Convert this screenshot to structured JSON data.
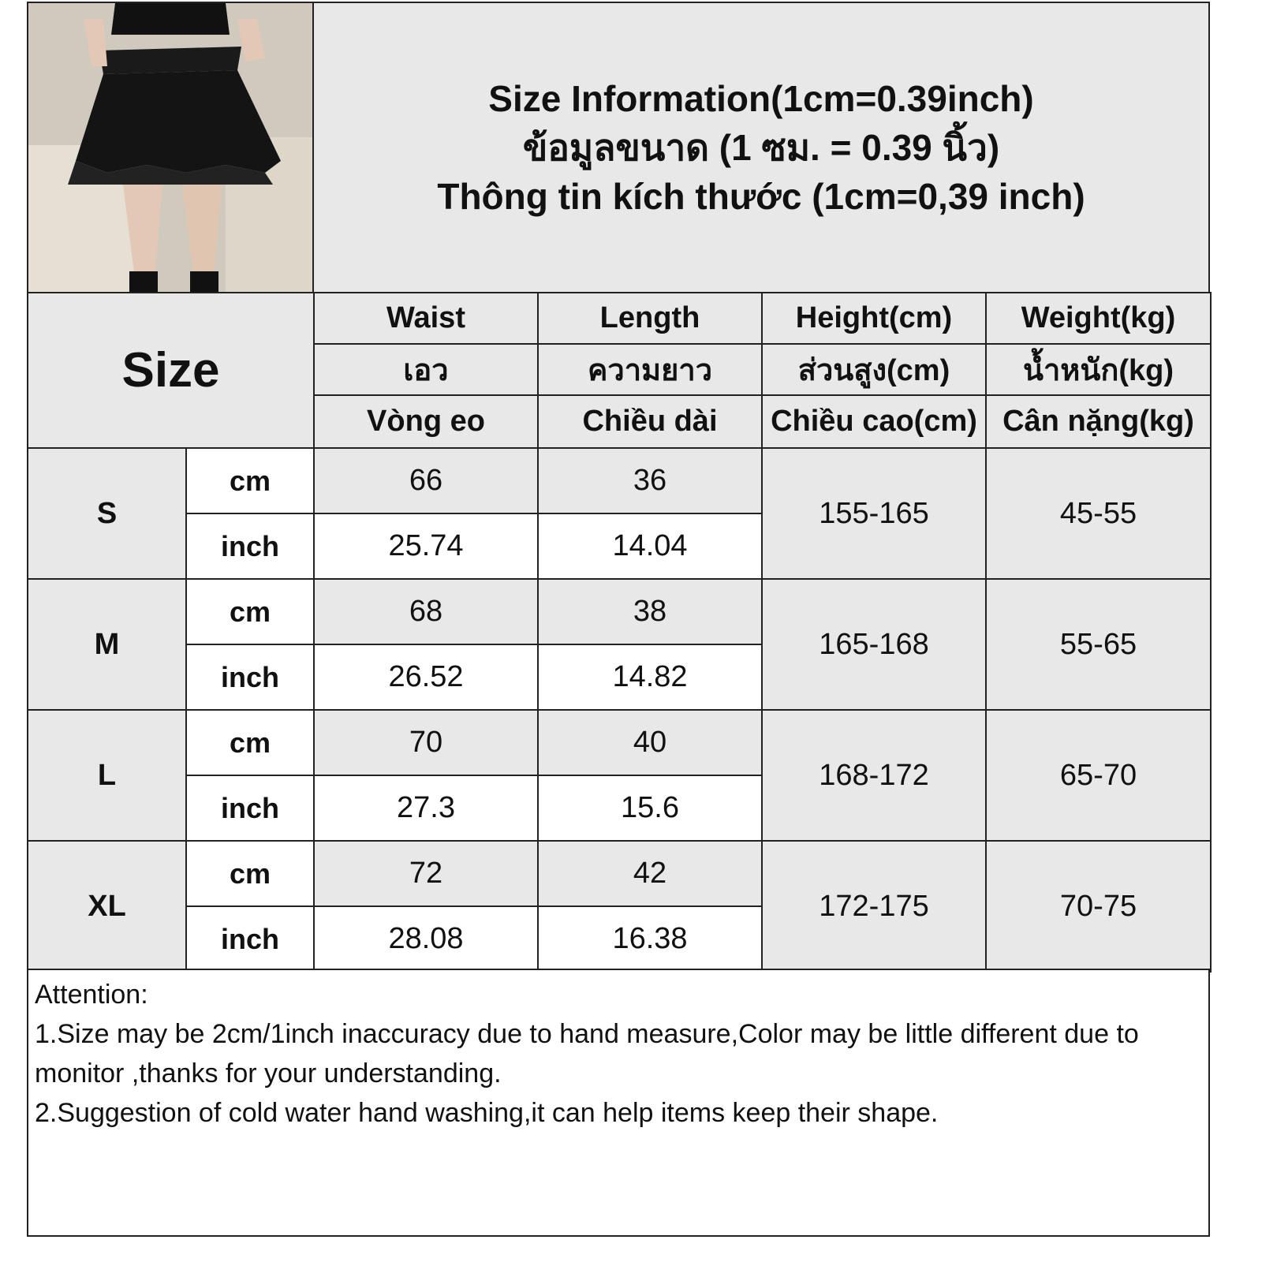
{
  "title": {
    "line1": "Size Information(1cm=0.39inch)",
    "line2": "ข้อมูลขนาด (1 ซม. = 0.39 นิ้ว)",
    "line3": "Thông tin kích thước (1cm=0,39 inch)"
  },
  "size_header": "Size",
  "columns": [
    {
      "en": "Waist",
      "th": "เอว",
      "vi": "Vòng eo"
    },
    {
      "en": "Length",
      "th": "ความยาว",
      "vi": "Chiều dài"
    },
    {
      "en": "Height(cm)",
      "th": "ส่วนสูง(cm)",
      "vi": "Chiều cao(cm)"
    },
    {
      "en": "Weight(kg)",
      "th": "น้ำหนัก(kg)",
      "vi": "Cân nặng(kg)"
    }
  ],
  "units": {
    "cm": "cm",
    "inch": "inch"
  },
  "rows": [
    {
      "size": "S",
      "waist_cm": "66",
      "length_cm": "36",
      "waist_inch": "25.74",
      "length_inch": "14.04",
      "height": "155-165",
      "weight": "45-55"
    },
    {
      "size": "M",
      "waist_cm": "68",
      "length_cm": "38",
      "waist_inch": "26.52",
      "length_inch": "14.82",
      "height": "165-168",
      "weight": "55-65"
    },
    {
      "size": "L",
      "waist_cm": "70",
      "length_cm": "40",
      "waist_inch": "27.3",
      "length_inch": "15.6",
      "height": "168-172",
      "weight": "65-70"
    },
    {
      "size": "XL",
      "waist_cm": "72",
      "length_cm": "42",
      "waist_inch": "28.08",
      "length_inch": "16.38",
      "height": "172-175",
      "weight": "70-75"
    }
  ],
  "notes": {
    "heading": "Attention:",
    "line1": "1.Size may be 2cm/1inch inaccuracy due to hand measure,Color may be little different due to monitor ,thanks for your understanding.",
    "line2": "2.Suggestion of cold water hand washing,it can help items keep their shape."
  },
  "colors": {
    "header_bg": "#e8e8e8",
    "border": "#222222",
    "cell_bg": "#ffffff"
  }
}
